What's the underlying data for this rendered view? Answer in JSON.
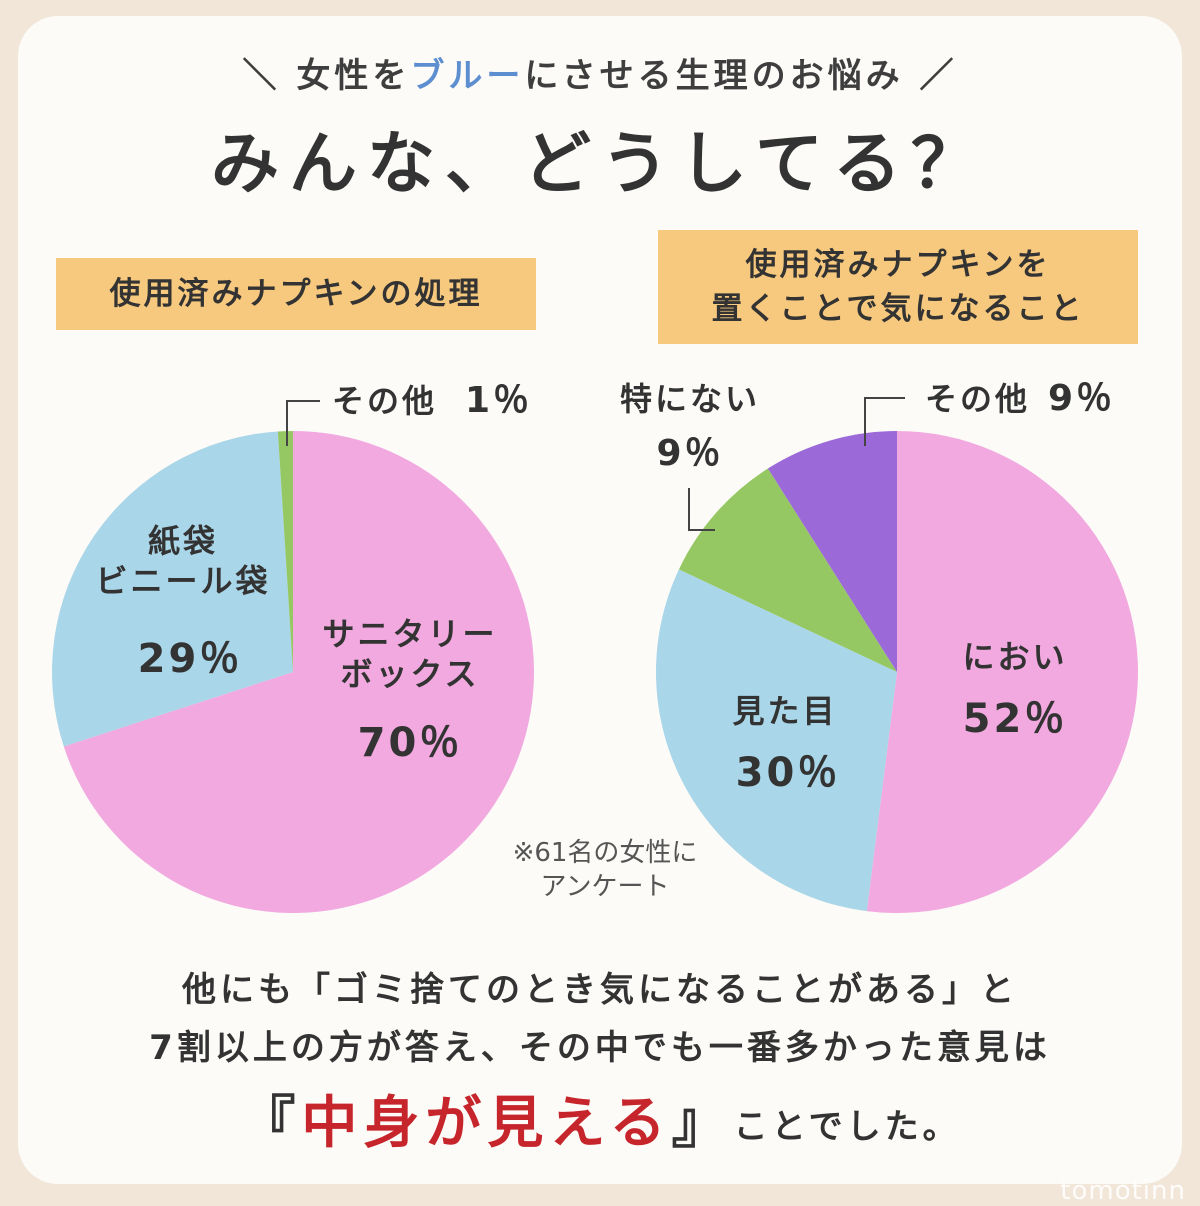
{
  "header": {
    "subtitle_before": "＼ 女性を",
    "subtitle_blue": "ブルー",
    "subtitle_after": "にさせる生理のお悩み ／",
    "title": "みんな、どうしてる？"
  },
  "colors": {
    "pink": "#f2a9df",
    "light_blue": "#a9d6e8",
    "green": "#95c862",
    "purple": "#9b6ad8",
    "label_box": "#f7c97e",
    "accent_blue": "#5d8fd0",
    "accent_red": "#c6252b"
  },
  "chart_data": [
    {
      "type": "pie",
      "title_lines": [
        "使用済みナプキンの処理"
      ],
      "slices": [
        {
          "name_lines": [
            "サニタリー",
            "ボックス"
          ],
          "value": 70,
          "label": "70％",
          "color": "#f2a9df"
        },
        {
          "name_lines": [
            "紙袋",
            "ビニール袋"
          ],
          "value": 29,
          "label": "29％",
          "color": "#a9d6e8"
        },
        {
          "name_lines": [
            "その他"
          ],
          "value": 1,
          "label": "1％",
          "color": "#95c862"
        }
      ]
    },
    {
      "type": "pie",
      "title_lines": [
        "使用済みナプキンを",
        "置くことで気になること"
      ],
      "slices": [
        {
          "name_lines": [
            "におい"
          ],
          "value": 52,
          "label": "52％",
          "color": "#f2a9df"
        },
        {
          "name_lines": [
            "見た目"
          ],
          "value": 30,
          "label": "30％",
          "color": "#a9d6e8"
        },
        {
          "name_lines": [
            "特にない"
          ],
          "value": 9,
          "label": "9％",
          "color": "#95c862"
        },
        {
          "name_lines": [
            "その他"
          ],
          "value": 9,
          "label": "9％",
          "color": "#9b6ad8"
        }
      ]
    }
  ],
  "note_lines": [
    "※61名の女性に",
    "アンケート"
  ],
  "body": {
    "line1": "他にも「ゴミ捨てのとき気になることがある」と",
    "line2": "7割以上の方が答え、その中でも一番多かった意見は",
    "line3_open": "『",
    "line3_highlight": "中身が見える",
    "line3_close": "』",
    "line3_after": "ことでした。"
  },
  "watermark": "tomotinn"
}
